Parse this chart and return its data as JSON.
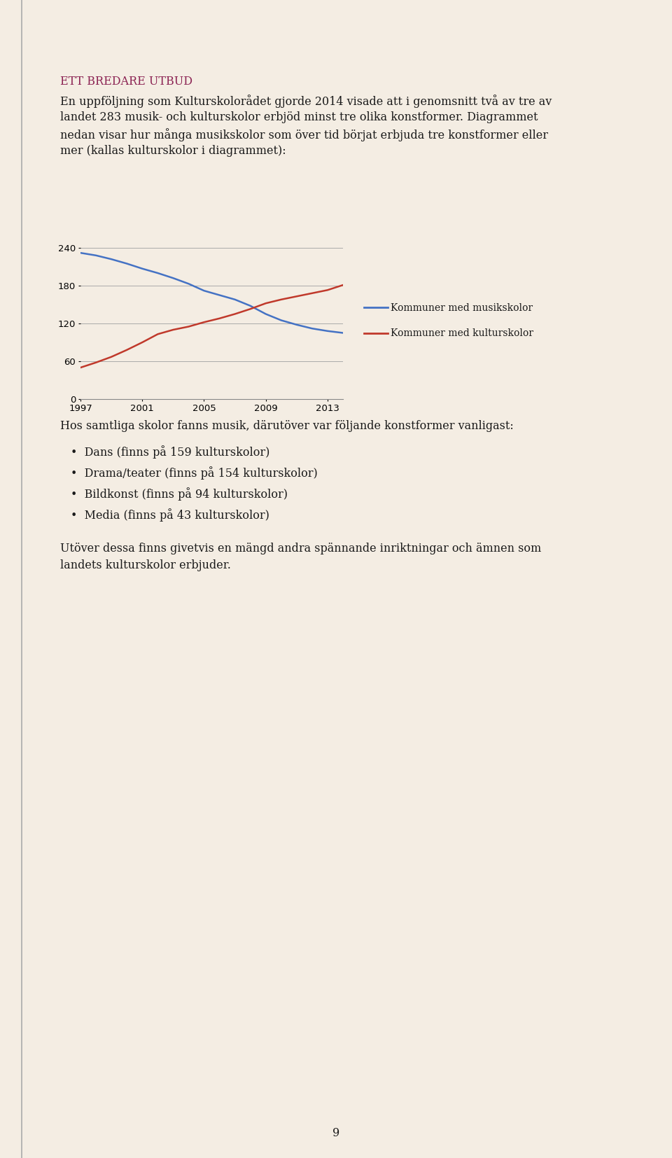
{
  "page_bg": "#f4ede3",
  "title_text": "ETT BREDARE UTBUD",
  "title_color": "#8b2252",
  "body_text_1a": "En uppföljning som Kulturskolorådet gjorde 2014 visade att i genomsnitt två av tre av",
  "body_text_1b": "landet 283 musik- och kulturskolor erbjöd minst tre olika konstformer. Diagrammet",
  "body_text_1c": "nedan visar hur många musikskolor som över tid börjat erbjuda tre konstformer eller",
  "body_text_1d": "mer (kallas kulturskolor i diagrammet):",
  "body_text_2": "Hos samtliga skolor fanns musik, därutöver var följande konstformer vanligast:",
  "bullet_items": [
    "Dans (finns på 159 kulturskolor)",
    "Drama/teater (finns på 154 kulturskolor)",
    "Bildkonst (finns på 94 kulturskolor)",
    "Media (finns på 43 kulturskolor)"
  ],
  "body_text_3a": "Utöver dessa finns givetvis en mängd andra spännande inriktningar och ämnen som",
  "body_text_3b": "landets kulturskolor erbjuder.",
  "page_number": "9",
  "chart": {
    "years": [
      1997,
      1998,
      1999,
      2000,
      2001,
      2002,
      2003,
      2004,
      2005,
      2006,
      2007,
      2008,
      2009,
      2010,
      2011,
      2012,
      2013,
      2014
    ],
    "musikskolor": [
      232,
      228,
      222,
      215,
      207,
      200,
      192,
      183,
      172,
      165,
      158,
      148,
      135,
      125,
      118,
      112,
      108,
      105
    ],
    "kulturskolor": [
      50,
      58,
      67,
      78,
      90,
      103,
      110,
      115,
      122,
      128,
      135,
      143,
      152,
      158,
      163,
      168,
      173,
      181
    ],
    "musik_color": "#4472c4",
    "kultur_color": "#c0392b",
    "legend_musik": "Kommuner med musikskolor",
    "legend_kultur": "Kommuner med kulturskolor",
    "yticks": [
      0,
      60,
      120,
      180,
      240
    ],
    "xticks": [
      1997,
      2001,
      2005,
      2009,
      2013
    ],
    "ylim": [
      0,
      250
    ],
    "xlim": [
      1997,
      2014
    ]
  }
}
